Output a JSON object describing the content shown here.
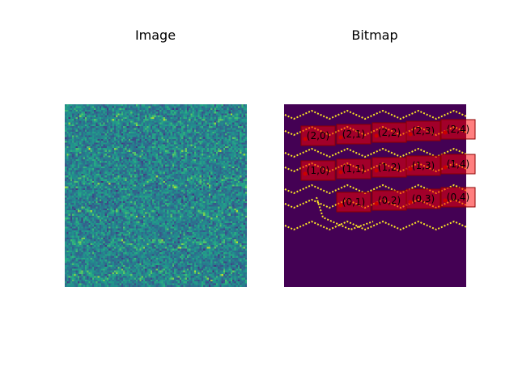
{
  "figure": {
    "panels": [
      {
        "title": "Image"
      },
      {
        "title": "Bitmap"
      }
    ]
  },
  "chart_data": [
    {
      "type": "heatmap",
      "title": "Image",
      "colormap": "viridis",
      "grid_size": [
        100,
        100
      ],
      "value_range": [
        0,
        1
      ],
      "ticks": "none",
      "description_of_content": "random noise field with faint periodic zig-zag streaks"
    },
    {
      "type": "heatmap",
      "title": "Bitmap",
      "colormap": "viridis",
      "grid_size": [
        100,
        100
      ],
      "value_range": [
        0,
        1
      ],
      "background_color": "#440154",
      "line_color": "#fde725",
      "ticks": "none",
      "annotations": [
        {
          "label": "(2,0)",
          "row": 2,
          "col": 0
        },
        {
          "label": "(2,1)",
          "row": 2,
          "col": 1
        },
        {
          "label": "(2,2)",
          "row": 2,
          "col": 2
        },
        {
          "label": "(2,3)",
          "row": 2,
          "col": 3
        },
        {
          "label": "(2,4)",
          "row": 2,
          "col": 4
        },
        {
          "label": "(1,0)",
          "row": 1,
          "col": 0
        },
        {
          "label": "(1,1)",
          "row": 1,
          "col": 1
        },
        {
          "label": "(1,2)",
          "row": 1,
          "col": 2
        },
        {
          "label": "(1,3)",
          "row": 1,
          "col": 3
        },
        {
          "label": "(1,4)",
          "row": 1,
          "col": 4
        },
        {
          "label": "(0,1)",
          "row": 0,
          "col": 1
        },
        {
          "label": "(0,2)",
          "row": 0,
          "col": 2
        },
        {
          "label": "(0,3)",
          "row": 0,
          "col": 3
        },
        {
          "label": "(0,4)",
          "row": 0,
          "col": 4
        }
      ],
      "annotation_style": {
        "fill": "#ff0000",
        "stroke": "#8b0000",
        "marker_color": "#cc0000"
      }
    }
  ]
}
